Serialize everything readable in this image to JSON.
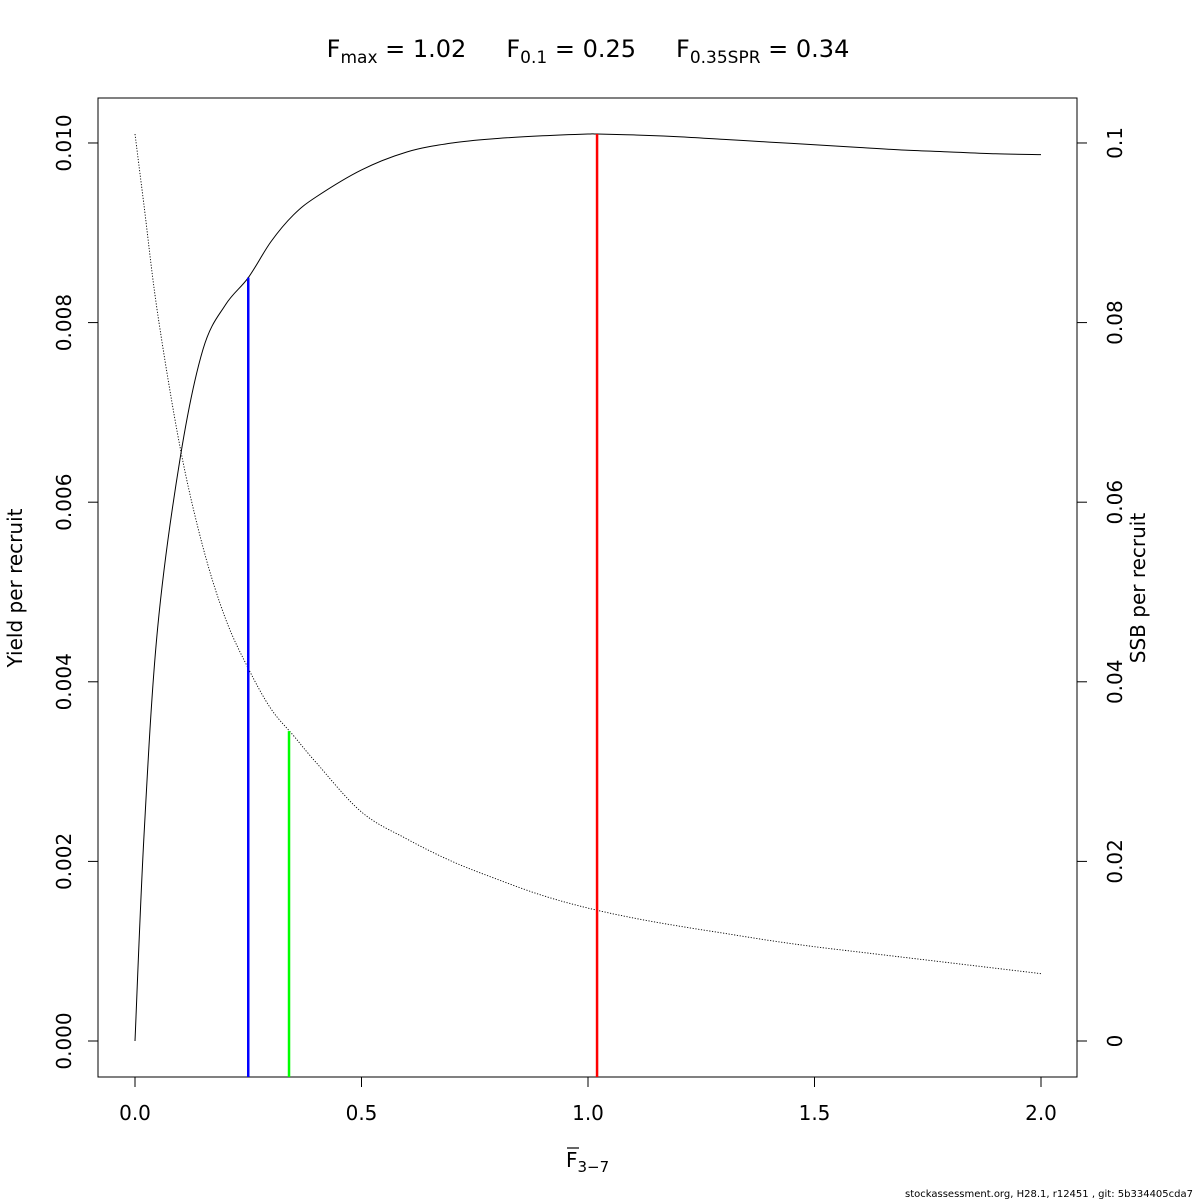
{
  "title": {
    "fmax": {
      "symbol": "F",
      "sub": "max",
      "eq": " = ",
      "value": "1.02"
    },
    "f01": {
      "symbol": "F",
      "sub": "0.1",
      "eq": " = ",
      "value": "0.25"
    },
    "fspr": {
      "symbol": "F",
      "sub": "0.35SPR",
      "eq": " = ",
      "value": "0.34"
    }
  },
  "xlabel": {
    "symbol": "F",
    "sub": "3−7"
  },
  "ylabel_left": "Yield per recruit",
  "ylabel_right": "SSB per recruit",
  "footer": "stockassessment.org, H28.1, r12451 , git: 5b334405cda7",
  "chart_data": {
    "type": "line",
    "x_ticks": [
      "0.0",
      "0.5",
      "1.0",
      "1.5",
      "2.0"
    ],
    "y_left_ticks": [
      "0.000",
      "0.002",
      "0.004",
      "0.006",
      "0.008",
      "0.010"
    ],
    "y_right_ticks": [
      "0",
      "0.02",
      "0.04",
      "0.06",
      "0.08",
      "0.1"
    ],
    "xlim": [
      0,
      2
    ],
    "ylim_left": [
      0,
      0.0101
    ],
    "ylim_right": [
      0,
      0.101
    ],
    "grid": false,
    "series": [
      {
        "axis": "left",
        "style": "solid",
        "color": "#000000",
        "x": [
          0.0,
          0.02,
          0.05,
          0.1,
          0.15,
          0.2,
          0.25,
          0.3,
          0.35,
          0.4,
          0.5,
          0.6,
          0.7,
          0.8,
          0.9,
          1.0,
          1.02,
          1.1,
          1.2,
          1.3,
          1.4,
          1.5,
          1.6,
          1.7,
          1.8,
          1.9,
          2.0
        ],
        "y": [
          0.0,
          0.0023,
          0.0046,
          0.0065,
          0.0077,
          0.0082,
          0.0085,
          0.0089,
          0.0092,
          0.0094,
          0.0097,
          0.0099,
          0.01,
          0.01005,
          0.01008,
          0.0101,
          0.0101,
          0.01009,
          0.01007,
          0.01004,
          0.01001,
          0.00998,
          0.00995,
          0.00992,
          0.0099,
          0.00988,
          0.00987
        ]
      },
      {
        "axis": "right",
        "style": "dotted",
        "color": "#000000",
        "x": [
          0.0,
          0.02,
          0.05,
          0.1,
          0.15,
          0.2,
          0.25,
          0.3,
          0.35,
          0.4,
          0.5,
          0.6,
          0.7,
          0.8,
          0.9,
          1.0,
          1.1,
          1.2,
          1.3,
          1.4,
          1.5,
          1.6,
          1.7,
          1.8,
          1.9,
          2.0
        ],
        "y": [
          0.101,
          0.093,
          0.081,
          0.066,
          0.055,
          0.047,
          0.0415,
          0.037,
          0.034,
          0.031,
          0.0255,
          0.0225,
          0.02,
          0.018,
          0.0162,
          0.0148,
          0.0137,
          0.0128,
          0.012,
          0.0112,
          0.0105,
          0.0099,
          0.0093,
          0.0087,
          0.0081,
          0.0075
        ]
      }
    ],
    "reference_lines": [
      {
        "name": "F0.1",
        "x": 0.25,
        "y_top": 0.0085,
        "axis": "left",
        "color": "#0000ff"
      },
      {
        "name": "F0.35SPR",
        "x": 0.34,
        "y_top": 0.0345,
        "axis": "right",
        "color": "#00ff00"
      },
      {
        "name": "Fmax",
        "x": 1.02,
        "y_top": 0.0101,
        "axis": "left",
        "color": "#ff0000"
      }
    ]
  }
}
